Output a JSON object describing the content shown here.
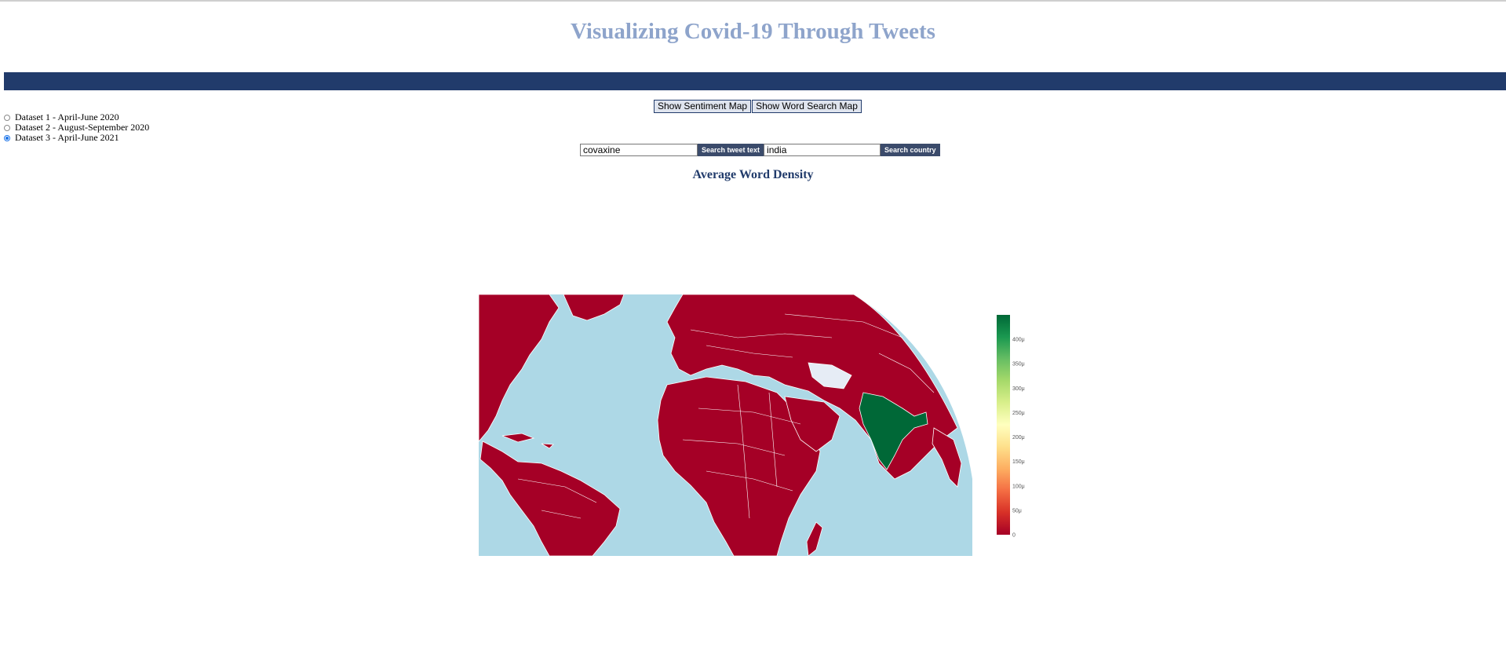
{
  "header": {
    "title": "Visualizing Covid-19 Through Tweets"
  },
  "datasets": [
    {
      "label": "Dataset 1 - April-June 2020",
      "checked": false
    },
    {
      "label": "Dataset 2 - August-September 2020",
      "checked": false
    },
    {
      "label": "Dataset 3 - April-June 2021",
      "checked": true
    }
  ],
  "map_buttons": {
    "sentiment": "Show Sentiment Map",
    "word_search": "Show Word Search Map"
  },
  "search": {
    "tweet_value": "covaxine",
    "tweet_button": "Search tweet text",
    "country_value": "india",
    "country_button": "Search country"
  },
  "chart_title": "Average Word Density",
  "chart_data": {
    "type": "choropleth",
    "title": "Average Word Density",
    "colorscale": [
      "#a50026",
      "#d73027",
      "#f46d43",
      "#fdae61",
      "#fee08b",
      "#ffffbf",
      "#d9ef8b",
      "#a6d96a",
      "#66bd63",
      "#1a9850",
      "#006837"
    ],
    "range": [
      0,
      450
    ],
    "tick_labels": [
      "0",
      "50μ",
      "100μ",
      "150μ",
      "200μ",
      "250μ",
      "300μ",
      "350μ",
      "400μ"
    ],
    "tick_values": [
      0,
      50,
      100,
      150,
      200,
      250,
      300,
      350,
      400
    ],
    "regions": [
      {
        "name": "india",
        "color": "high"
      },
      {
        "name": "other countries",
        "color": "low"
      },
      {
        "name": "no data",
        "color": "#e6ecf5"
      }
    ],
    "ocean_color": "#add8e6",
    "land_low_color": "#a50026",
    "land_high_color": "#006837"
  }
}
